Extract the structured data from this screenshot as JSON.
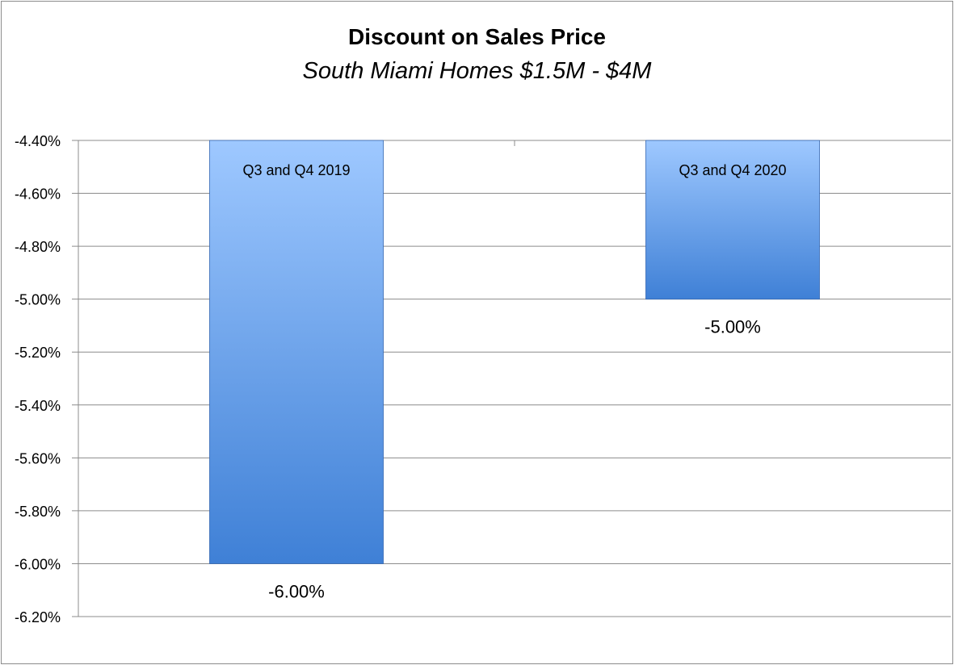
{
  "chart_data": {
    "type": "bar",
    "title": "Discount on Sales Price",
    "subtitle": "South Miami Homes $1.5M - $4M",
    "categories": [
      "Q3 and Q4 2019",
      "Q3 and Q4 2020"
    ],
    "values": [
      -6.0,
      -5.0
    ],
    "data_labels": [
      "-6.00%",
      "-5.00%"
    ],
    "ylim": [
      -6.2,
      -4.4
    ],
    "yticks": [
      -4.4,
      -4.6,
      -4.8,
      -5.0,
      -5.2,
      -5.4,
      -5.6,
      -5.8,
      -6.0,
      -6.2
    ],
    "ytick_labels": [
      "-4.40%",
      "-4.60%",
      "-4.80%",
      "-5.00%",
      "-5.20%",
      "-5.40%",
      "-5.60%",
      "-5.80%",
      "-6.00%",
      "-6.20%"
    ],
    "grid": true,
    "legend": "none",
    "colors": {
      "bar_top": "#9ec8ff",
      "bar_bottom": "#3f80d6",
      "bar_edge": "#3467b3",
      "grid": "#8c8c8c"
    }
  }
}
